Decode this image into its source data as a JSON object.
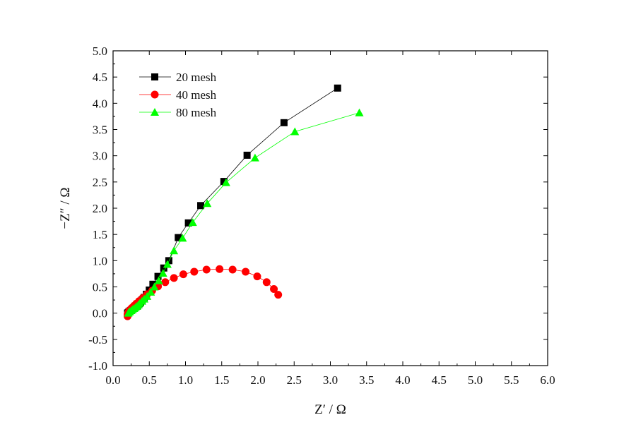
{
  "chart_data": {
    "type": "scatter",
    "title": "",
    "xlabel": "Z′ / Ω",
    "ylabel": "−Z″ / Ω",
    "xlim": [
      0.0,
      6.0
    ],
    "ylim": [
      -1.0,
      5.0
    ],
    "xticks": [
      "0.0",
      "0.5",
      "1.0",
      "1.5",
      "2.0",
      "2.5",
      "3.0",
      "3.5",
      "4.0",
      "4.5",
      "5.0",
      "5.5",
      "6.0"
    ],
    "yticks": [
      "-1.0",
      "-0.5",
      "0.0",
      "0.5",
      "1.0",
      "1.5",
      "2.0",
      "2.5",
      "3.0",
      "3.5",
      "4.0",
      "4.5",
      "5.0"
    ],
    "grid": false,
    "legend": "top-left",
    "series": [
      {
        "name": "20 mesh",
        "color": "#000000",
        "marker": "square",
        "line": true,
        "x": [
          0.2,
          0.21,
          0.22,
          0.24,
          0.26,
          0.28,
          0.3,
          0.32,
          0.34,
          0.36,
          0.38,
          0.4,
          0.43,
          0.46,
          0.5,
          0.55,
          0.62,
          0.7,
          0.77,
          0.9,
          1.04,
          1.21,
          1.53,
          1.85,
          2.36,
          3.1
        ],
        "y": [
          0.0,
          0.01,
          0.03,
          0.05,
          0.07,
          0.09,
          0.11,
          0.13,
          0.15,
          0.18,
          0.21,
          0.25,
          0.3,
          0.36,
          0.44,
          0.55,
          0.7,
          0.86,
          1.0,
          1.44,
          1.72,
          2.05,
          2.51,
          3.01,
          3.63,
          4.29
        ]
      },
      {
        "name": "40 mesh",
        "color": "#ff0000",
        "marker": "circle",
        "line": true,
        "x": [
          0.2,
          0.2,
          0.21,
          0.22,
          0.24,
          0.26,
          0.29,
          0.32,
          0.36,
          0.41,
          0.47,
          0.54,
          0.62,
          0.72,
          0.84,
          0.97,
          1.12,
          1.29,
          1.47,
          1.65,
          1.83,
          1.99,
          2.12,
          2.22,
          2.28
        ],
        "y": [
          -0.06,
          -0.02,
          0.01,
          0.04,
          0.07,
          0.1,
          0.14,
          0.18,
          0.23,
          0.29,
          0.36,
          0.43,
          0.51,
          0.59,
          0.67,
          0.74,
          0.79,
          0.83,
          0.84,
          0.83,
          0.79,
          0.7,
          0.59,
          0.46,
          0.35
        ]
      },
      {
        "name": "80 mesh",
        "color": "#00ff00",
        "marker": "triangle",
        "line": true,
        "x": [
          0.21,
          0.22,
          0.23,
          0.25,
          0.27,
          0.29,
          0.31,
          0.33,
          0.35,
          0.37,
          0.4,
          0.43,
          0.47,
          0.52,
          0.57,
          0.63,
          0.69,
          0.75,
          0.84,
          0.96,
          1.1,
          1.3,
          1.56,
          1.96,
          2.51,
          3.4
        ],
        "y": [
          0.0,
          0.02,
          0.03,
          0.05,
          0.07,
          0.09,
          0.11,
          0.13,
          0.16,
          0.19,
          0.23,
          0.27,
          0.32,
          0.4,
          0.5,
          0.62,
          0.76,
          0.93,
          1.19,
          1.43,
          1.73,
          2.09,
          2.49,
          2.96,
          3.46,
          3.82
        ]
      }
    ]
  }
}
